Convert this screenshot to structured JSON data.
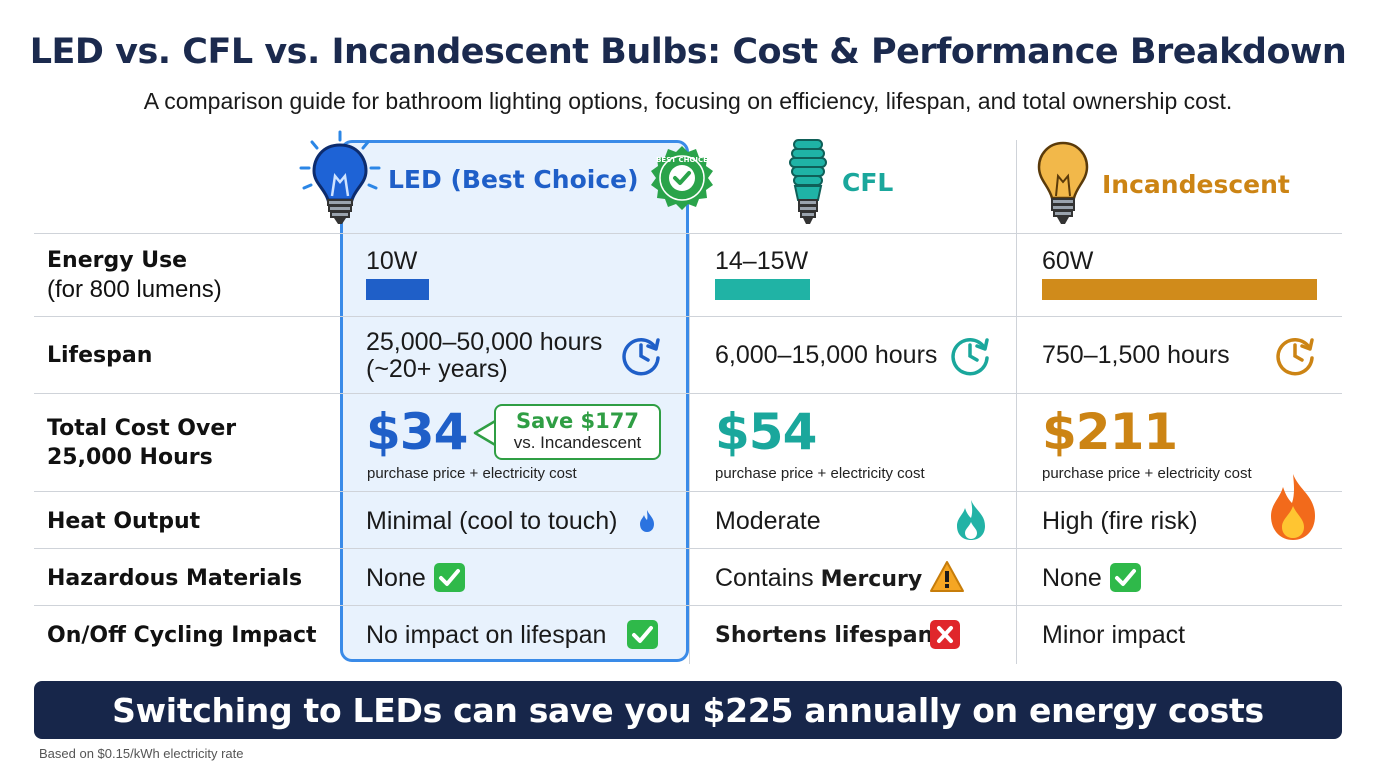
{
  "header": {
    "title": "LED vs. CFL vs. Incandescent Bulbs: Cost & Performance Breakdown",
    "subtitle": "A comparison guide for bathroom lighting options, focusing on efficiency, lifespan, and total ownership cost."
  },
  "columns": {
    "led": {
      "label": "LED (Best Choice)",
      "badge": "BEST CHOICE",
      "color": "#1f5fc8",
      "icon": "led-bulb-icon"
    },
    "cfl": {
      "label": "CFL",
      "color": "#1aa79c",
      "icon": "cfl-spiral-bulb-icon"
    },
    "incandescent": {
      "label": "Incandescent",
      "color": "#cc8414",
      "icon": "incandescent-bulb-icon"
    }
  },
  "rows": {
    "energy": {
      "label": "Energy Use",
      "sublabel": "(for 800 lumens)",
      "led": "10W",
      "cfl": "14–15W",
      "incandescent": "60W",
      "watts": {
        "led": 10,
        "cfl": 15,
        "incandescent": 60
      }
    },
    "lifespan": {
      "label": "Lifespan",
      "led_line1": "25,000–50,000 hours",
      "led_line2": "(~20+ years)",
      "cfl": "6,000–15,000 hours",
      "incandescent": "750–1,500 hours"
    },
    "cost": {
      "label_line1": "Total Cost Over",
      "label_line2": "25,000 Hours",
      "led": "$34",
      "cfl": "$54",
      "incandescent": "$211",
      "note": "purchase price + electricity cost",
      "save_main": "Save $177",
      "save_sub": "vs. Incandescent"
    },
    "heat": {
      "label": "Heat Output",
      "led": "Minimal (cool to touch)",
      "cfl": "Moderate",
      "incandescent": "High (fire risk)"
    },
    "hazard": {
      "label": "Hazardous Materials",
      "led": "None",
      "cfl_prefix": "Contains ",
      "cfl_bold": "Mercury",
      "incandescent": "None"
    },
    "cycling": {
      "label": "On/Off Cycling Impact",
      "led": "No impact on lifespan",
      "cfl": "Shortens lifespan",
      "incandescent": "Minor impact"
    }
  },
  "footer": {
    "banner": "Switching to LEDs can save you $225 annually on energy costs",
    "note": "Based on $0.15/kWh electricity rate"
  }
}
